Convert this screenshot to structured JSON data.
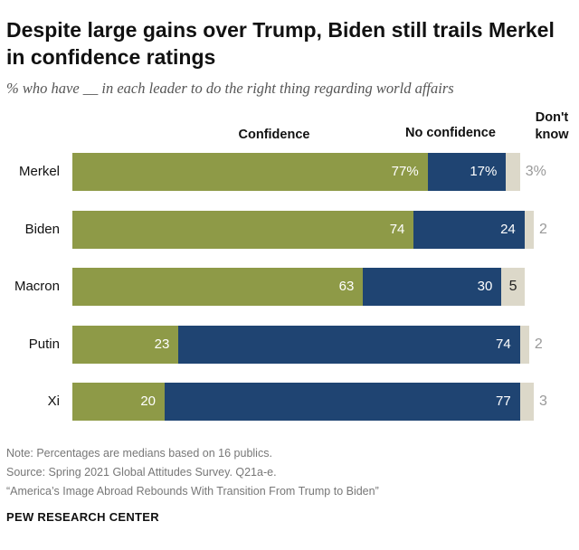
{
  "title": "Despite large gains over Trump, Biden still trails Merkel in confidence ratings",
  "subtitle": "% who have __ in each leader to do the right thing regarding world affairs",
  "chart_data": {
    "type": "bar",
    "orientation": "horizontal",
    "stacked": true,
    "categories": [
      "Merkel",
      "Biden",
      "Macron",
      "Putin",
      "Xi"
    ],
    "series": [
      {
        "name": "Confidence",
        "values": [
          77,
          74,
          63,
          23,
          20
        ],
        "labels": [
          "77%",
          "74",
          "63",
          "23",
          "20"
        ]
      },
      {
        "name": "No confidence",
        "values": [
          17,
          24,
          30,
          74,
          77
        ],
        "labels": [
          "17%",
          "24",
          "30",
          "74",
          "77"
        ]
      },
      {
        "name": "Don't know",
        "values": [
          3,
          2,
          5,
          2,
          3
        ],
        "labels": [
          "3%",
          "2",
          "5",
          "2",
          "3"
        ]
      }
    ],
    "xlim": [
      0,
      100
    ]
  },
  "colors": {
    "confidence": "#8e9a47",
    "no_confidence": "#1f4472",
    "dont_know": "#dcd8c9"
  },
  "footer": {
    "note": "Note: Percentages are medians based on 16 publics.",
    "source": "Source: Spring 2021 Global Attitudes Survey. Q21a-e.",
    "report": "“America’s Image Abroad Rebounds With Transition From Trump to Biden”",
    "brand": "PEW RESEARCH CENTER"
  }
}
